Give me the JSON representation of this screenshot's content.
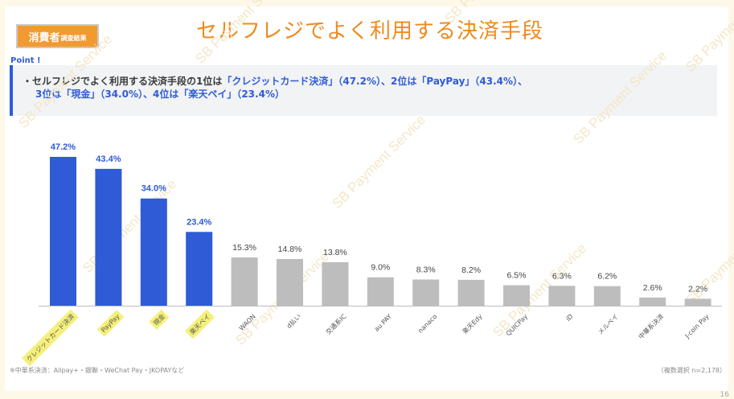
{
  "header": {
    "badge_main": "消費者",
    "badge_sub": "調査結果",
    "title": "セルフレジでよく利用する決済手段"
  },
  "point_label": "Point !",
  "summary": {
    "line1_pre": "・セルフレジでよく利用する決済手段の1位は",
    "line1_hl": "「クレジットカード決済」（47.2%）、2位は「PayPay」（43.4%）、",
    "line2_hl": "3位は「現金」（34.0%）、4位は「楽天ペイ」（23.4%）"
  },
  "footnote": "※中華系決済：Alipay+・銀聯・WeChat Pay・JKOPAYなど",
  "multi_select": "（複数選択 n=2,178）",
  "watermark": "SB Payment Service",
  "page_number": "16",
  "colors": {
    "highlight_bar": "#2f5bd6",
    "other_bar": "#bdbdbd",
    "label_highlight": "#f5f07a",
    "accent": "#ee8a1e"
  },
  "chart_data": {
    "type": "bar",
    "unit": "%",
    "categories": [
      "クレジットカード決済",
      "PayPay",
      "現金",
      "楽天ペイ",
      "WAON",
      "d払い",
      "交通系IC",
      "au PAY",
      "nanaco",
      "楽天Edy",
      "QUICPay",
      "iD",
      "メルペイ",
      "中華系決済",
      "J-coin Pay"
    ],
    "values": [
      47.2,
      43.4,
      34.0,
      23.4,
      15.3,
      14.8,
      13.8,
      9.0,
      8.3,
      8.2,
      6.5,
      6.3,
      6.2,
      2.6,
      2.2
    ],
    "value_labels": [
      "47.2%",
      "43.4%",
      "34.0%",
      "23.4%",
      "15.3%",
      "14.8%",
      "13.8%",
      "9.0%",
      "8.3%",
      "8.2%",
      "6.5%",
      "6.3%",
      "6.2%",
      "2.6%",
      "2.2%"
    ],
    "highlighted": [
      true,
      true,
      true,
      true,
      false,
      false,
      false,
      false,
      false,
      false,
      false,
      false,
      false,
      false,
      false
    ],
    "ylim": [
      0,
      50
    ],
    "grid": false
  }
}
